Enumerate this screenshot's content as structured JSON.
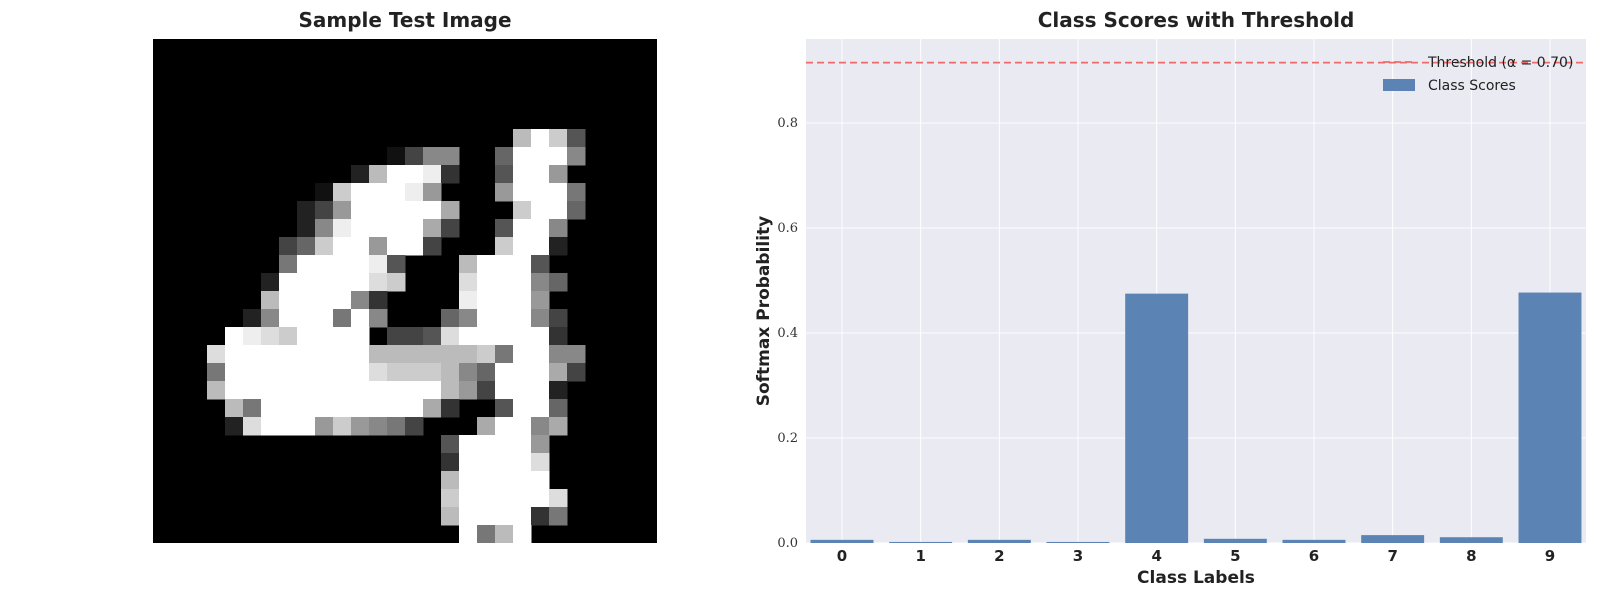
{
  "image_panel": {
    "title": "Sample Test Image",
    "rows": [
      "0000000000000000000000000000",
      "0000000000000000000000000000",
      "0000000000000000000000000000",
      "0000000000000000000000000000",
      "0000000000000000000000000000",
      "00000000000000000000bfc50000",
      "00000000000001488006fff80000",
      "000000000002bffe3005ff900000",
      "0000000001cfffe90009fff70000",
      "00000000249fffffa000cff60000",
      "0000000028effffa4005ff800000",
      "000000046cff9ff4000cff200000",
      "00000007ffffe5000bfff5000000",
      "0000002fffffdc000dfff8600000",
      "000000bffff830000efff9000000",
      "0000028fff7f800068fff8400000",
      "0000fedcffff0445dfffff300000",
      "000dffffffffbbbbbbc7ff880000",
      "0007ffffffffdcccb86fffa40000",
      "000bffffffffffffb94fff200000",
      "0000b7fffffffffa3005ff600000",
      "00002dfff9c9874000aff8a00000",
      "00000000000000005ffff9000000",
      "00000000000000003ffffd000000",
      "0000000000000000bfffff000000",
      "0000000000000000cfffffd00000",
      "0000000000000000bffff3700000",
      "00000000000000000f7bf0000000"
    ]
  },
  "chart_data": {
    "type": "bar",
    "title": "Class Scores with Threshold",
    "xlabel": "Class Labels",
    "ylabel": "Softmax Probability",
    "categories": [
      "0",
      "1",
      "2",
      "3",
      "4",
      "5",
      "6",
      "7",
      "8",
      "9"
    ],
    "series": [
      {
        "name": "Class Scores",
        "values": [
          0.006,
          0.002,
          0.006,
          0.002,
          0.475,
          0.008,
          0.006,
          0.015,
          0.011,
          0.477
        ],
        "color": "#5b84b4"
      }
    ],
    "threshold": {
      "label": "Threshold (α = 0.70)",
      "value": 0.915,
      "color": "#ef6b6b",
      "style": "dashed"
    },
    "ylim": [
      0,
      0.96
    ],
    "yticks": [
      "0.0",
      "0.2",
      "0.4",
      "0.6",
      "0.8"
    ],
    "grid": true,
    "background": "#eaeaf2",
    "legend_position": "top-right"
  }
}
